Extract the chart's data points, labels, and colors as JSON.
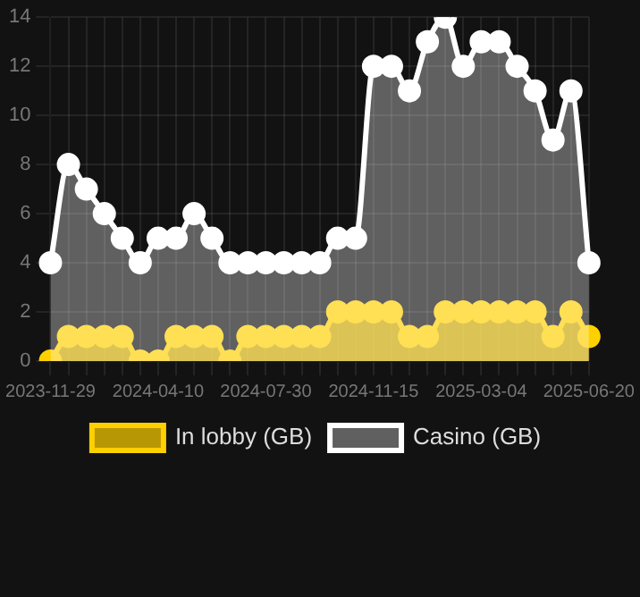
{
  "chart_data": {
    "type": "area",
    "categories": [
      "2023-11-29",
      null,
      null,
      null,
      null,
      null,
      "2024-04-10",
      null,
      null,
      null,
      null,
      null,
      "2024-07-30",
      null,
      null,
      null,
      null,
      null,
      "2024-11-15",
      null,
      null,
      null,
      null,
      null,
      "2025-03-04",
      null,
      null,
      null,
      null,
      null,
      "2025-06-20"
    ],
    "series": [
      {
        "name": "In lobby (GB)",
        "color": "#ffd000",
        "values": [
          0,
          1,
          1,
          1,
          1,
          0,
          0,
          1,
          1,
          1,
          0,
          1,
          1,
          1,
          1,
          1,
          2,
          2,
          2,
          2,
          1,
          1,
          2,
          2,
          2,
          2,
          2,
          2,
          1,
          2,
          1
        ]
      },
      {
        "name": "Casino (GB)",
        "color": "#ffffff",
        "values": [
          4,
          8,
          7,
          6,
          5,
          4,
          5,
          5,
          6,
          5,
          4,
          4,
          4,
          4,
          4,
          4,
          5,
          5,
          12,
          12,
          11,
          13,
          14,
          12,
          13,
          13,
          12,
          11,
          9,
          11,
          4
        ]
      }
    ],
    "ylim": [
      0,
      14
    ],
    "yticks": [
      0,
      2,
      4,
      6,
      8,
      10,
      12,
      14
    ],
    "grid": true,
    "legend": "bottom",
    "marker": "circle"
  }
}
